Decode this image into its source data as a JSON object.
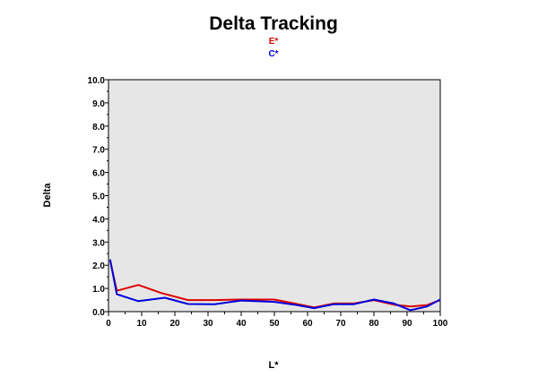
{
  "chart_data": {
    "type": "line",
    "title": "Delta Tracking",
    "xlabel": "L*",
    "ylabel": "Delta",
    "xlim": [
      0,
      100
    ],
    "ylim": [
      0,
      10
    ],
    "x_ticks": [
      "0",
      "10",
      "20",
      "30",
      "40",
      "50",
      "60",
      "70",
      "80",
      "90",
      "100"
    ],
    "y_ticks": [
      "0.0",
      "1.0",
      "2.0",
      "3.0",
      "4.0",
      "5.0",
      "6.0",
      "7.0",
      "8.0",
      "9.0",
      "10.0"
    ],
    "grid": false,
    "legend_position": "top-center",
    "plot_background": "#e6e6e6",
    "series": [
      {
        "name": "E*",
        "color": "#dd0000",
        "points": [
          [
            0.5,
            2.2
          ],
          [
            2.5,
            0.9
          ],
          [
            9,
            1.15
          ],
          [
            16,
            0.8
          ],
          [
            24,
            0.5
          ],
          [
            32,
            0.5
          ],
          [
            40,
            0.52
          ],
          [
            50,
            0.52
          ],
          [
            56,
            0.35
          ],
          [
            62,
            0.18
          ],
          [
            68,
            0.35
          ],
          [
            74,
            0.35
          ],
          [
            80,
            0.5
          ],
          [
            86,
            0.3
          ],
          [
            91,
            0.22
          ],
          [
            96,
            0.28
          ],
          [
            100,
            0.5
          ]
        ]
      },
      {
        "name": "C*",
        "color": "#0000dd",
        "points": [
          [
            0.5,
            2.25
          ],
          [
            2.5,
            0.75
          ],
          [
            9,
            0.45
          ],
          [
            17,
            0.6
          ],
          [
            24,
            0.33
          ],
          [
            32,
            0.32
          ],
          [
            40,
            0.48
          ],
          [
            50,
            0.42
          ],
          [
            56,
            0.3
          ],
          [
            62,
            0.15
          ],
          [
            68,
            0.32
          ],
          [
            74,
            0.32
          ],
          [
            80,
            0.52
          ],
          [
            86,
            0.35
          ],
          [
            91,
            0.06
          ],
          [
            96,
            0.22
          ],
          [
            100,
            0.52
          ]
        ]
      }
    ]
  }
}
